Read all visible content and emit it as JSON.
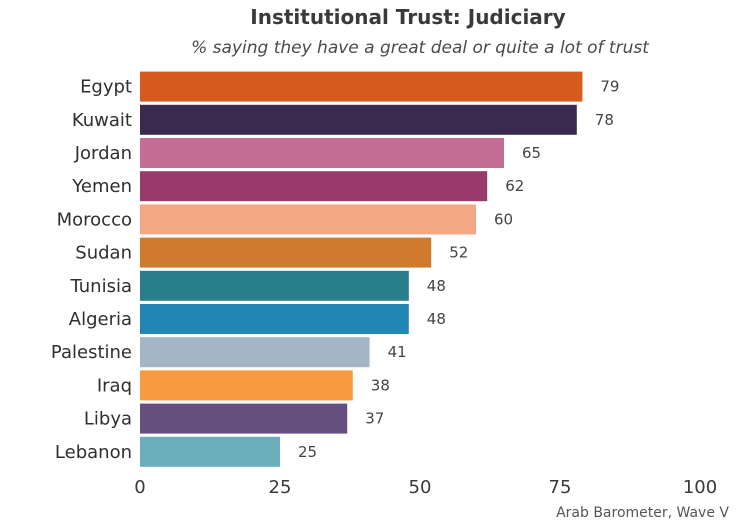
{
  "source": "Arab Barometer, Wave V",
  "chart_data": {
    "type": "bar",
    "orientation": "horizontal",
    "title": "Institutional Trust: Judiciary",
    "subtitle": "% saying they have a great deal or quite a lot of trust",
    "categories": [
      "Egypt",
      "Kuwait",
      "Jordan",
      "Yemen",
      "Morocco",
      "Sudan",
      "Tunisia",
      "Algeria",
      "Palestine",
      "Iraq",
      "Libya",
      "Lebanon"
    ],
    "values": [
      79,
      78,
      65,
      62,
      60,
      52,
      48,
      48,
      41,
      38,
      37,
      25
    ],
    "colors": [
      "#d65a1e",
      "#3a2a50",
      "#c46d96",
      "#9a3a6a",
      "#f2a882",
      "#d07a2e",
      "#2a7d8a",
      "#2186b4",
      "#a4b5c4",
      "#f89a40",
      "#654f7e",
      "#6aaebc"
    ],
    "xlim": [
      0,
      100
    ],
    "xticks": [
      0,
      25,
      50,
      75,
      100
    ],
    "grid": false,
    "legend": "none"
  }
}
